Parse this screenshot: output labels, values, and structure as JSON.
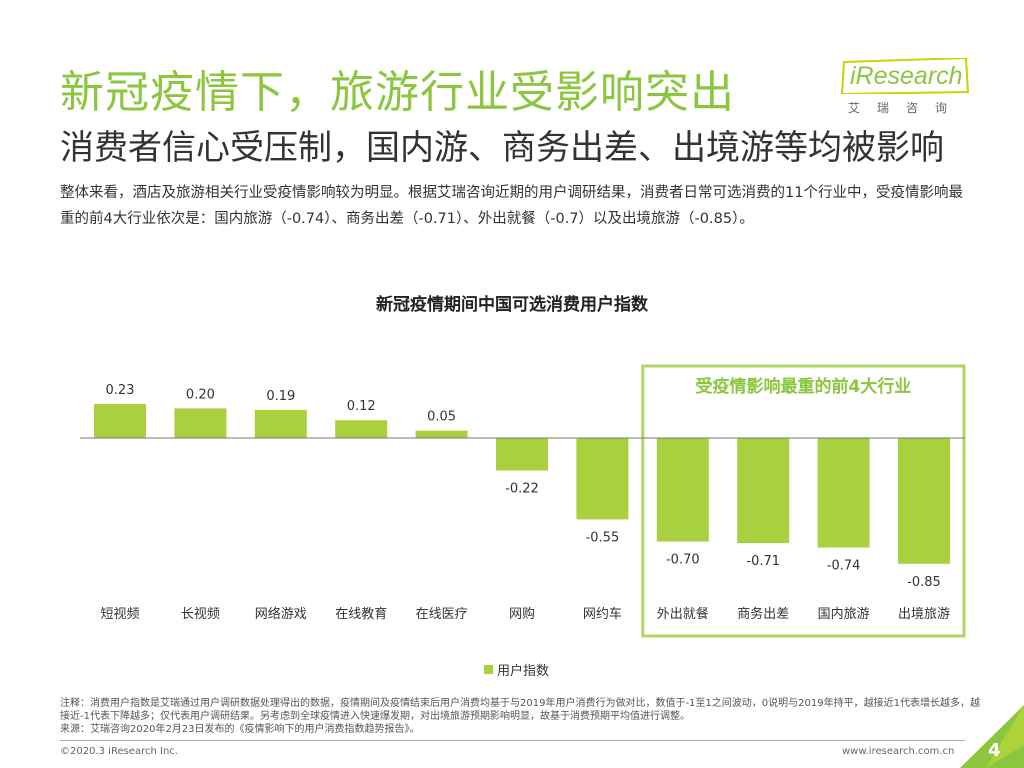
{
  "header": {
    "title": "新冠疫情下，旅游行业受影响突出",
    "subtitle": "消费者信心受压制，国内游、商务出差、出境游等均被影响"
  },
  "logo": {
    "text": "iResearch",
    "chinese": "艾瑞咨询"
  },
  "description": "整体来看，酒店及旅游相关行业受疫情影响较为明显。根据艾瑞咨询近期的用户调研结果，消费者日常可选消费的11个行业中，受疫情影响最重的前4大行业依次是：国内旅游（-0.74）、商务出差（-0.71）、外出就餐（-0.7）以及出境旅游（-0.85）。",
  "chart_data": {
    "type": "bar",
    "title": "新冠疫情期间中国可选消费用户指数",
    "categories": [
      "短视频",
      "长视频",
      "网络游戏",
      "在线教育",
      "在线医疗",
      "网购",
      "网约车",
      "外出就餐",
      "商务出差",
      "国内旅游",
      "出境旅游"
    ],
    "series": [
      {
        "name": "用户指数",
        "values": [
          0.23,
          0.2,
          0.19,
          0.12,
          0.05,
          -0.22,
          -0.55,
          -0.7,
          -0.71,
          -0.74,
          -0.85
        ]
      }
    ],
    "value_labels": [
      "0.23",
      "0.20",
      "0.19",
      "0.12",
      "0.05",
      "-0.22",
      "-0.55",
      "-0.70",
      "-0.71",
      "-0.74",
      "-0.85"
    ],
    "highlight": {
      "label": "受疫情影响最重的前4大行业",
      "from_index": 7,
      "to_index": 10
    },
    "xlabel": "",
    "ylabel": "",
    "ylim": [
      -1,
      0.3
    ],
    "legend": "bottom-center",
    "grid": false
  },
  "legend_label": "用户指数",
  "colors": {
    "accent": "#8cc63f",
    "bar": "#a9d13f",
    "highlight_border": "#b3d465",
    "highlight_text": "#8cc63f"
  },
  "footer": {
    "note": "注释：消费用户指数是艾瑞通过用户调研数据处理得出的数据，疫情期间及疫情结束后用户消费均基于与2019年用户消费行为做对比，数值于-1至1之间波动，0说明与2019年持平，越接近1代表增长越多，越接近-1代表下降越多；仅代表用户调研结果。另考虑到全球疫情进入快速爆发期，对出境旅游预期影响明显，故基于消费预期平均值进行调整。",
    "source": "来源：艾瑞咨询2020年2月23日发布的《疫情影响下的用户消费指数趋势报告》。",
    "copyright": "©2020.3 iResearch Inc.",
    "website": "www.iresearch.com.cn",
    "page": "4"
  }
}
